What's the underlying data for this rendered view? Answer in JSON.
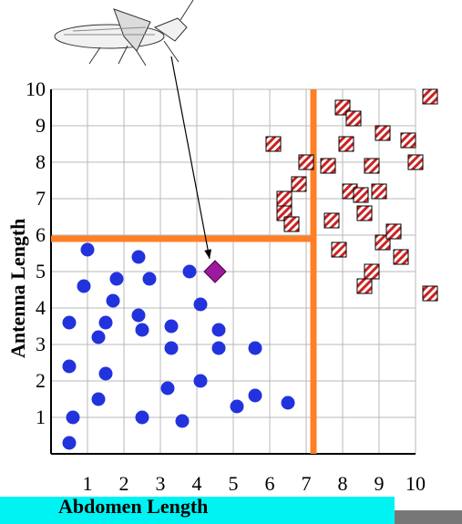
{
  "chart_data": {
    "type": "scatter",
    "title": "",
    "xlabel": "Abdomen Length",
    "ylabel": "Antenna Length",
    "xlim": [
      0,
      10
    ],
    "ylim": [
      0,
      10
    ],
    "x_ticks": [
      "1",
      "2",
      "3",
      "4",
      "5",
      "6",
      "7",
      "8",
      "9",
      "10"
    ],
    "y_ticks": [
      "1",
      "2",
      "3",
      "4",
      "5",
      "6",
      "7",
      "8",
      "9",
      "10"
    ],
    "grid": true,
    "thresholds": {
      "abdomen": 7.2,
      "antenna": 5.9
    },
    "query_point": {
      "x": 4.5,
      "y": 5.0,
      "color": "#9c1a9c"
    },
    "colors": {
      "circles": "#2233dd",
      "squares": "#cc2222",
      "threshold_lines": "#ff7f27",
      "band": "#00f3f3"
    },
    "series": [
      {
        "marker": "circle",
        "points": [
          [
            0.5,
            0.3
          ],
          [
            0.6,
            1.0
          ],
          [
            0.5,
            2.4
          ],
          [
            0.5,
            3.6
          ],
          [
            0.9,
            4.6
          ],
          [
            1.0,
            5.6
          ],
          [
            1.3,
            1.5
          ],
          [
            1.3,
            3.2
          ],
          [
            1.5,
            2.2
          ],
          [
            1.5,
            3.6
          ],
          [
            1.7,
            4.2
          ],
          [
            1.8,
            4.8
          ],
          [
            2.4,
            3.8
          ],
          [
            2.5,
            3.4
          ],
          [
            2.5,
            1.0
          ],
          [
            2.4,
            5.4
          ],
          [
            2.7,
            4.8
          ],
          [
            3.2,
            1.8
          ],
          [
            3.3,
            2.9
          ],
          [
            3.3,
            3.5
          ],
          [
            3.6,
            0.9
          ],
          [
            3.8,
            5.0
          ],
          [
            4.1,
            4.1
          ],
          [
            4.1,
            2.0
          ],
          [
            4.6,
            3.4
          ],
          [
            4.6,
            2.9
          ],
          [
            5.1,
            1.3
          ],
          [
            5.6,
            1.6
          ],
          [
            5.6,
            2.9
          ],
          [
            6.5,
            1.4
          ]
        ]
      },
      {
        "marker": "square",
        "points": [
          [
            6.4,
            7.0
          ],
          [
            6.4,
            6.6
          ],
          [
            6.6,
            6.3
          ],
          [
            6.8,
            7.4
          ],
          [
            7.0,
            8.0
          ],
          [
            7.6,
            7.9
          ],
          [
            7.7,
            6.4
          ],
          [
            7.9,
            5.6
          ],
          [
            8.0,
            9.5
          ],
          [
            8.1,
            8.5
          ],
          [
            8.2,
            7.2
          ],
          [
            8.6,
            6.6
          ],
          [
            8.8,
            5.0
          ],
          [
            8.6,
            4.6
          ],
          [
            8.8,
            7.9
          ],
          [
            9.0,
            7.2
          ],
          [
            9.1,
            5.8
          ],
          [
            9.4,
            6.1
          ],
          [
            9.6,
            5.4
          ],
          [
            9.8,
            8.6
          ],
          [
            10.0,
            8.0
          ],
          [
            10.4,
            4.4
          ],
          [
            10.4,
            9.8
          ],
          [
            9.1,
            8.8
          ],
          [
            6.1,
            8.5
          ],
          [
            8.3,
            9.2
          ],
          [
            8.5,
            7.1
          ]
        ]
      }
    ]
  }
}
